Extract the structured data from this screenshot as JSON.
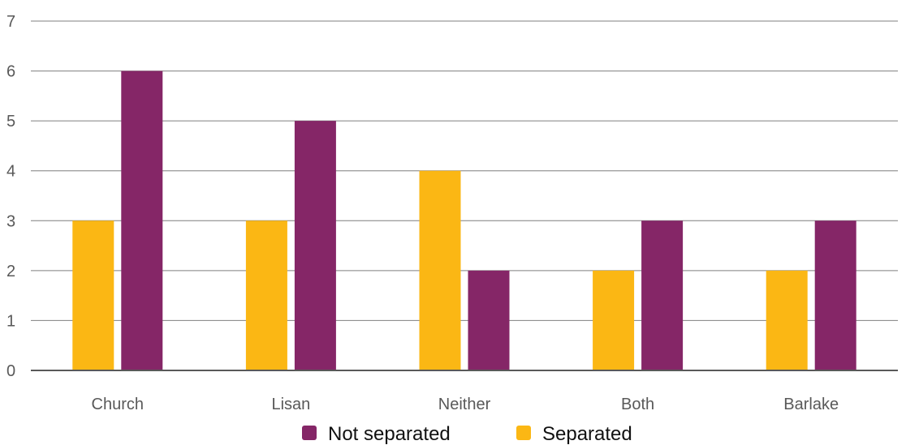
{
  "chart_data": {
    "type": "bar",
    "categories": [
      "Church",
      "Lisan",
      "Neither",
      "Both",
      "Barlake"
    ],
    "series": [
      {
        "name": "Separated",
        "values": [
          3,
          3,
          4,
          2,
          2
        ],
        "color": "#FBB714"
      },
      {
        "name": "Not separated",
        "values": [
          6,
          5,
          2,
          3,
          3
        ],
        "color": "#852667"
      }
    ],
    "yticks": [
      0,
      1,
      2,
      3,
      4,
      5,
      6,
      7
    ],
    "ylim": [
      0,
      7
    ],
    "grid": true,
    "legend": {
      "placement": "bottom-center",
      "order": [
        "Not separated",
        "Separated"
      ]
    }
  }
}
